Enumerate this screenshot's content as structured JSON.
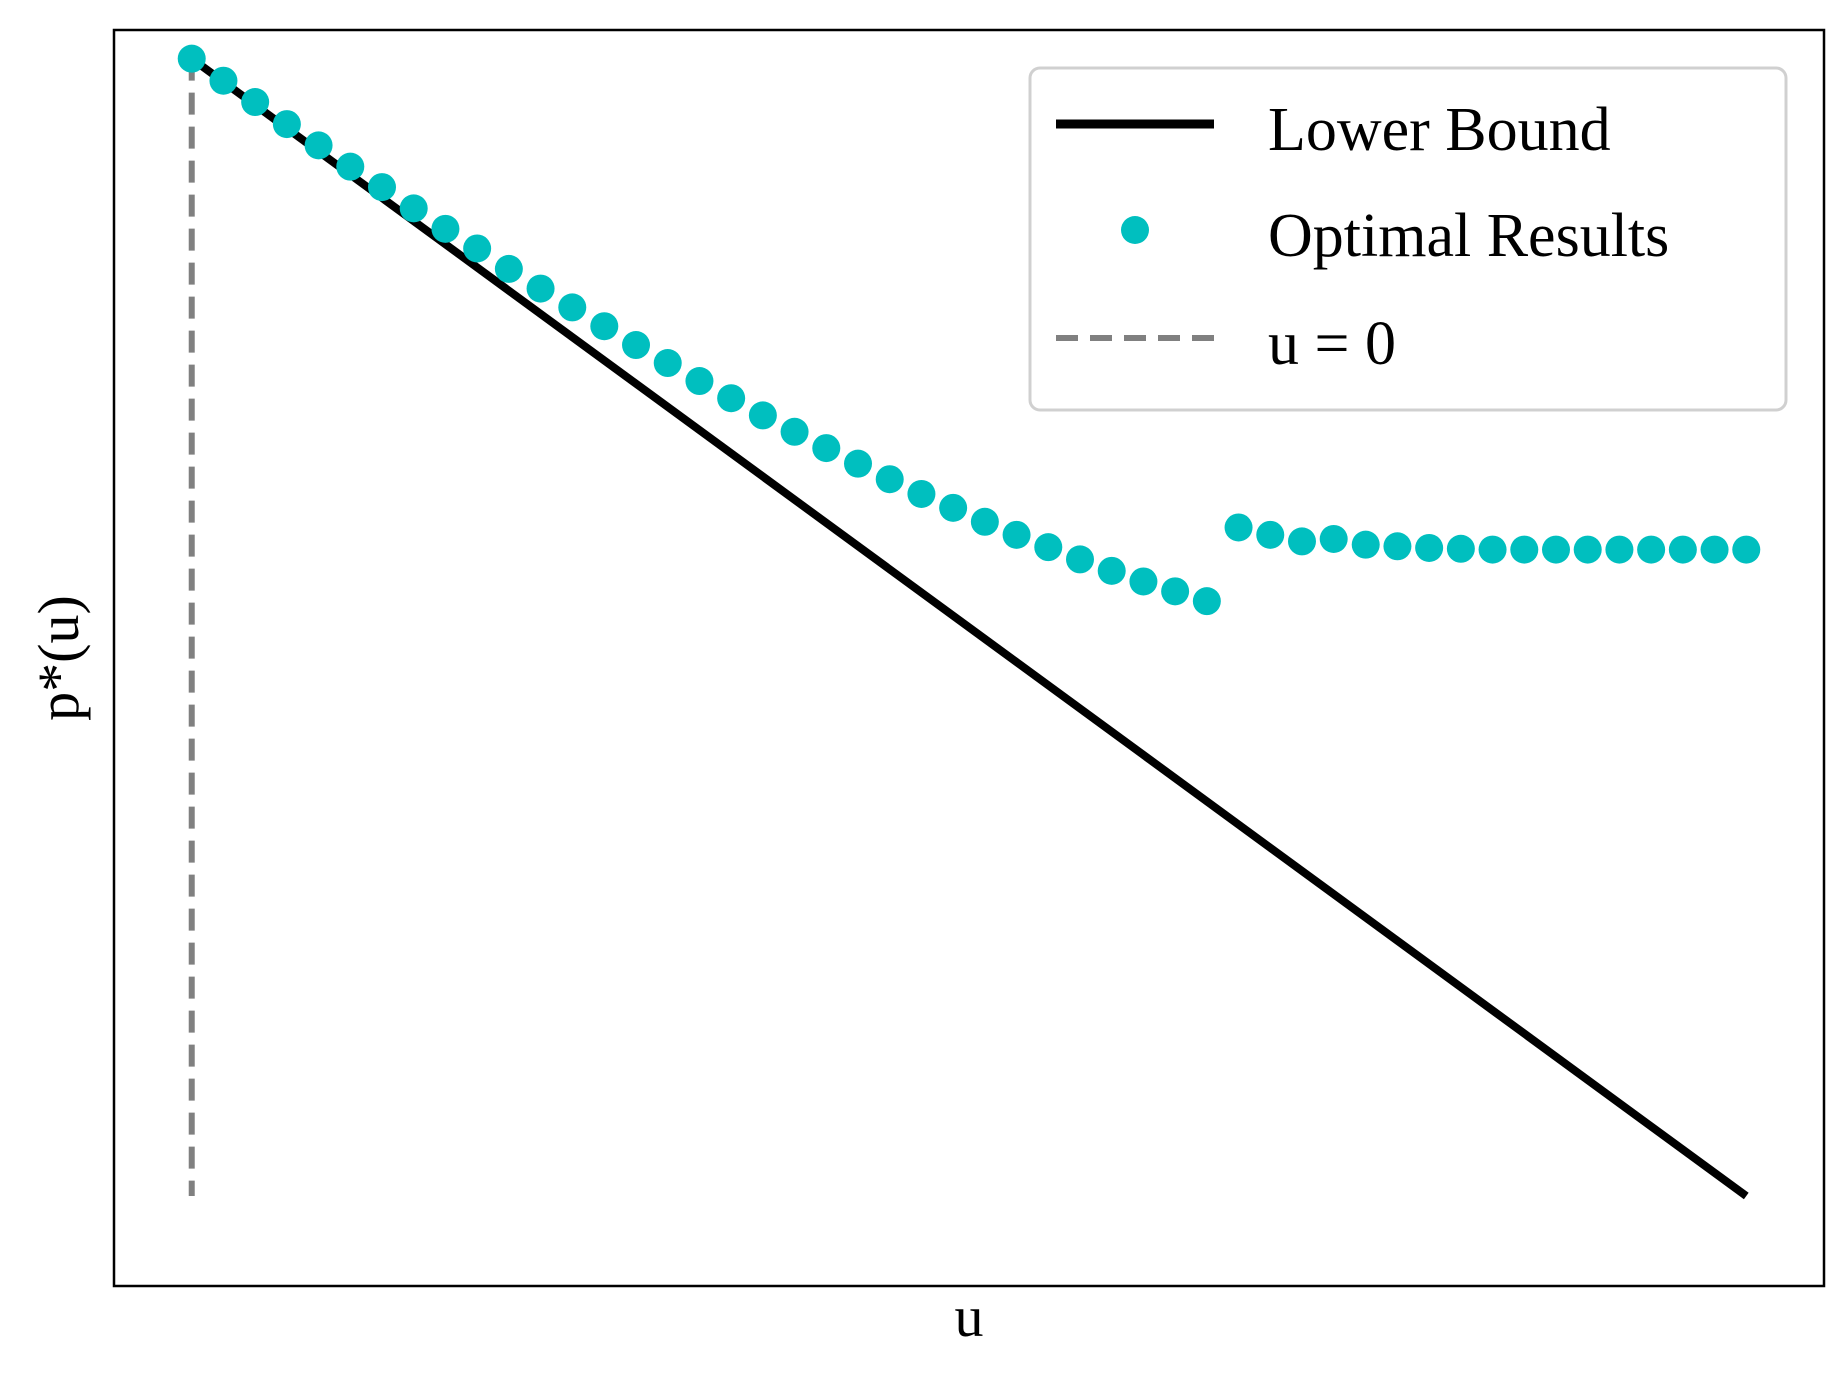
{
  "chart_data": {
    "type": "line",
    "title": "",
    "xlabel": "u",
    "ylabel": "p*(u)",
    "xlim": [
      -0.025,
      0.525
    ],
    "ylim": [
      -0.5,
      1.035
    ],
    "show_ticks": false,
    "grid": false,
    "legend": {
      "position": "top-right",
      "entries": [
        {
          "label": "Lower Bound",
          "style": "solid-line",
          "color": "#000000"
        },
        {
          "label": "Optimal Results",
          "style": "marker",
          "color": "#00BFBF"
        },
        {
          "label": "u = 0",
          "style": "dashed-line",
          "color": "#808080"
        }
      ]
    },
    "series": [
      {
        "name": "Lower Bound",
        "style": "line",
        "color": "#000000",
        "x": [
          0,
          0.5
        ],
        "y": [
          1.0,
          -0.39
        ]
      },
      {
        "name": "Optimal Results",
        "style": "scatter",
        "color": "#00BFBF",
        "x": [
          0.0,
          0.0102,
          0.0204,
          0.0306,
          0.0408,
          0.051,
          0.0612,
          0.0714,
          0.0816,
          0.0918,
          0.102,
          0.1122,
          0.1224,
          0.1327,
          0.1429,
          0.1531,
          0.1633,
          0.1735,
          0.1837,
          0.1939,
          0.2041,
          0.2143,
          0.2245,
          0.2347,
          0.2449,
          0.2551,
          0.2653,
          0.2755,
          0.2857,
          0.2959,
          0.3061,
          0.3163,
          0.3265,
          0.3367,
          0.3469,
          0.3571,
          0.3673,
          0.3776,
          0.3878,
          0.398,
          0.4082,
          0.4184,
          0.4286,
          0.4388,
          0.449,
          0.4592,
          0.4694,
          0.4796,
          0.4898,
          0.5
        ],
        "y": [
          1.0,
          0.973,
          0.947,
          0.92,
          0.894,
          0.868,
          0.843,
          0.817,
          0.792,
          0.768,
          0.743,
          0.719,
          0.696,
          0.673,
          0.65,
          0.628,
          0.606,
          0.585,
          0.564,
          0.544,
          0.524,
          0.505,
          0.486,
          0.468,
          0.451,
          0.434,
          0.418,
          0.403,
          0.388,
          0.374,
          0.361,
          0.349,
          0.337,
          0.427,
          0.418,
          0.41,
          0.413,
          0.406,
          0.404,
          0.402,
          0.401,
          0.4,
          0.4,
          0.4,
          0.4,
          0.4,
          0.4,
          0.4,
          0.4,
          0.4
        ]
      },
      {
        "name": "u = 0",
        "style": "dashed-line",
        "color": "#808080",
        "x": [
          0,
          0
        ],
        "y": [
          1.0,
          -0.39
        ]
      }
    ]
  }
}
